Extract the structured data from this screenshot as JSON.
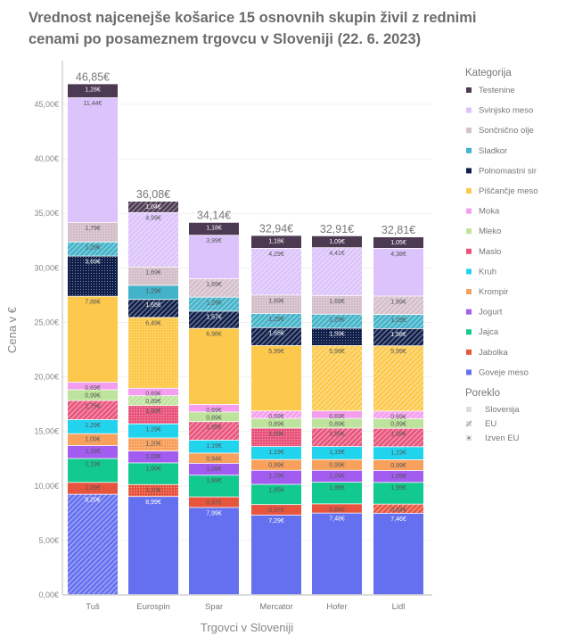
{
  "chart_data": {
    "type": "bar",
    "stacked": true,
    "title": "Vrednost najcenejše košarice 15 osnovnih skupin živil z rednimi cenami po posameznem trgovcu v Sloveniji (22. 6. 2023)",
    "xlabel": "Trgovci v Sloveniji",
    "ylabel": "Cena v €",
    "ylim": [
      0,
      47
    ],
    "yticks": [
      "0,00€",
      "5,00€",
      "10,00€",
      "15,00€",
      "20,00€",
      "25,00€",
      "30,00€",
      "35,00€",
      "40,00€",
      "45,00€"
    ],
    "ytick_values": [
      0,
      5,
      10,
      15,
      20,
      25,
      30,
      35,
      40,
      45
    ],
    "grid": true,
    "legend_position": "right",
    "categories": [
      "Tuš",
      "Eurospin",
      "Spar",
      "Mercator",
      "Hofer",
      "Lidl"
    ],
    "totals": [
      "46,85€",
      "36,08€",
      "34,14€",
      "32,94€",
      "32,91€",
      "32,81€"
    ],
    "legend_title_category": "Kategorija",
    "legend_title_origin": "Poreklo",
    "origins": [
      {
        "key": "S",
        "name": "Slovenija"
      },
      {
        "key": "E",
        "name": "EU"
      },
      {
        "key": "I",
        "name": "Izven EU"
      }
    ],
    "series": [
      {
        "name": "Goveje meso",
        "color": "#6470f0",
        "values": [
          9.2,
          8.99,
          7.99,
          7.29,
          7.48,
          7.46
        ],
        "origin": [
          "E",
          "S",
          "S",
          "S",
          "S",
          "S"
        ]
      },
      {
        "name": "Jabolka",
        "color": "#e8553f",
        "values": [
          1.09,
          1.1,
          0.97,
          0.97,
          0.84,
          0.84
        ],
        "origin": [
          "S",
          "I",
          "S",
          "S",
          "S",
          "E"
        ]
      },
      {
        "name": "Jajca",
        "color": "#12c98f",
        "values": [
          2.19,
          1.99,
          1.99,
          1.85,
          1.99,
          1.99
        ],
        "origin": [
          "S",
          "S",
          "S",
          "S",
          "S",
          "S"
        ]
      },
      {
        "name": "Jogurt",
        "color": "#a35cf0",
        "values": [
          1.19,
          1.09,
          1.09,
          1.29,
          1.09,
          1.09
        ],
        "origin": [
          "S",
          "S",
          "S",
          "S",
          "S",
          "S"
        ]
      },
      {
        "name": "Krompir",
        "color": "#f8a15c",
        "values": [
          1.09,
          1.2,
          0.94,
          0.99,
          0.99,
          0.99
        ],
        "origin": [
          "S",
          "I",
          "S",
          "S",
          "S",
          "S"
        ]
      },
      {
        "name": "Kruh",
        "color": "#22d3ee",
        "values": [
          1.29,
          1.29,
          1.19,
          1.19,
          1.19,
          1.19
        ],
        "origin": [
          "S",
          "S",
          "S",
          "S",
          "S",
          "S"
        ]
      },
      {
        "name": "Maslo",
        "color": "#e9557c",
        "values": [
          1.75,
          1.69,
          1.69,
          1.69,
          1.69,
          1.69
        ],
        "origin": [
          "E",
          "I",
          "E",
          "I",
          "E",
          "E"
        ]
      },
      {
        "name": "Mleko",
        "color": "#bde39c",
        "values": [
          0.99,
          0.89,
          0.89,
          0.89,
          0.89,
          0.89
        ],
        "origin": [
          "S",
          "E",
          "S",
          "S",
          "S",
          "S"
        ]
      },
      {
        "name": "Moka",
        "color": "#f59ef0",
        "values": [
          0.69,
          0.69,
          0.69,
          0.69,
          0.69,
          0.69
        ],
        "origin": [
          "S",
          "S",
          "S",
          "E",
          "S",
          "E"
        ]
      },
      {
        "name": "Piščančje meso",
        "color": "#fcc94c",
        "values": [
          7.88,
          6.49,
          6.98,
          5.99,
          5.99,
          5.99
        ],
        "origin": [
          "S",
          "I",
          "S",
          "S",
          "E",
          "E"
        ]
      },
      {
        "name": "Polnomastni sir",
        "color": "#0f1f4a",
        "values": [
          3.69,
          1.65,
          1.57,
          1.65,
          1.59,
          1.58
        ],
        "origin": [
          "I",
          "E",
          "E",
          "E",
          "I",
          "E"
        ]
      },
      {
        "name": "Sladkor",
        "color": "#43b3c9",
        "values": [
          1.29,
          1.29,
          1.29,
          1.29,
          1.29,
          1.29
        ],
        "origin": [
          "E",
          "S",
          "E",
          "E",
          "E",
          "E"
        ]
      },
      {
        "name": "Sončnično olje",
        "color": "#d4bfca",
        "values": [
          1.79,
          1.69,
          1.69,
          1.69,
          1.69,
          1.69
        ],
        "origin": [
          "I",
          "I",
          "E",
          "I",
          "I",
          "E"
        ]
      },
      {
        "name": "Svinjsko meso",
        "color": "#dcc3fb",
        "values": [
          11.44,
          4.99,
          3.99,
          4.29,
          4.41,
          4.38
        ],
        "origin": [
          "S",
          "E",
          "S",
          "E",
          "E",
          "S"
        ]
      },
      {
        "name": "Testenine",
        "color": "#4b3a52",
        "values": [
          1.28,
          1.04,
          1.18,
          1.18,
          1.09,
          1.05
        ],
        "origin": [
          "S",
          "E",
          "S",
          "S",
          "S",
          "S"
        ]
      }
    ]
  }
}
